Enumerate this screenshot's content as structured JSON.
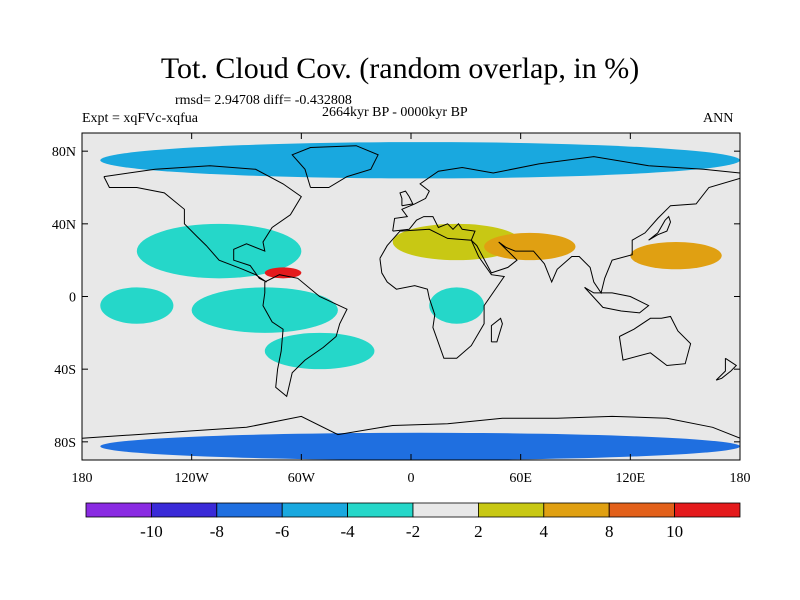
{
  "title": "Tot. Cloud Cov. (random overlap, in %)",
  "stats": "rmsd= 2.94708 diff= -0.432808",
  "experiment": "Expt = xqFVc-xqfua",
  "period": "2664kyr BP - 0000kyr BP",
  "season": "ANN",
  "lat_ticks": [
    "80N",
    "40N",
    "0",
    "40S",
    "80S"
  ],
  "lat_values": [
    80,
    40,
    0,
    -40,
    -80
  ],
  "lon_ticks": [
    "180",
    "120W",
    "60W",
    "0",
    "60E",
    "120E",
    "180"
  ],
  "lon_values": [
    -180,
    -120,
    -60,
    0,
    60,
    120,
    180
  ],
  "colorbar": {
    "labels": [
      "-10",
      "-8",
      "-6",
      "-4",
      "-2",
      "2",
      "4",
      "8",
      "10"
    ],
    "colors": [
      "#8a2be2",
      "#3a2ad8",
      "#1f6fe0",
      "#19a8df",
      "#25d7c9",
      "#e8e8e8",
      "#c8c814",
      "#e0a012",
      "#e2601a",
      "#e41a1c"
    ]
  },
  "chart_data": {
    "type": "heatmap",
    "projection": "cylindrical equidistant",
    "xlim": [
      -180,
      180
    ],
    "ylim": [
      -90,
      90
    ],
    "levels": [
      -10,
      -8,
      -6,
      -4,
      -2,
      2,
      4,
      8,
      10
    ],
    "regions": [
      {
        "lon": [
          -150,
          -60
        ],
        "lat": [
          10,
          40
        ],
        "level": "-4"
      },
      {
        "lon": [
          -120,
          -40
        ],
        "lat": [
          -20,
          5
        ],
        "level": "-4"
      },
      {
        "lon": [
          -80,
          -20
        ],
        "lat": [
          -40,
          -20
        ],
        "level": "-4"
      },
      {
        "lon": [
          10,
          40
        ],
        "lat": [
          -15,
          5
        ],
        "level": "-4"
      },
      {
        "lon": [
          -170,
          -130
        ],
        "lat": [
          -15,
          5
        ],
        "level": "-4"
      },
      {
        "lon": [
          -10,
          60
        ],
        "lat": [
          20,
          40
        ],
        "level": "4"
      },
      {
        "lon": [
          40,
          90
        ],
        "lat": [
          20,
          35
        ],
        "level": "8"
      },
      {
        "lon": [
          120,
          170
        ],
        "lat": [
          15,
          30
        ],
        "level": "8"
      },
      {
        "lon": [
          -170,
          180
        ],
        "lat": [
          -90,
          -75
        ],
        "level": "-8"
      },
      {
        "lon": [
          -170,
          180
        ],
        "lat": [
          65,
          85
        ],
        "level": "-6"
      },
      {
        "lon": [
          -80,
          -60
        ],
        "lat": [
          10,
          16
        ],
        "level": "10"
      }
    ]
  }
}
